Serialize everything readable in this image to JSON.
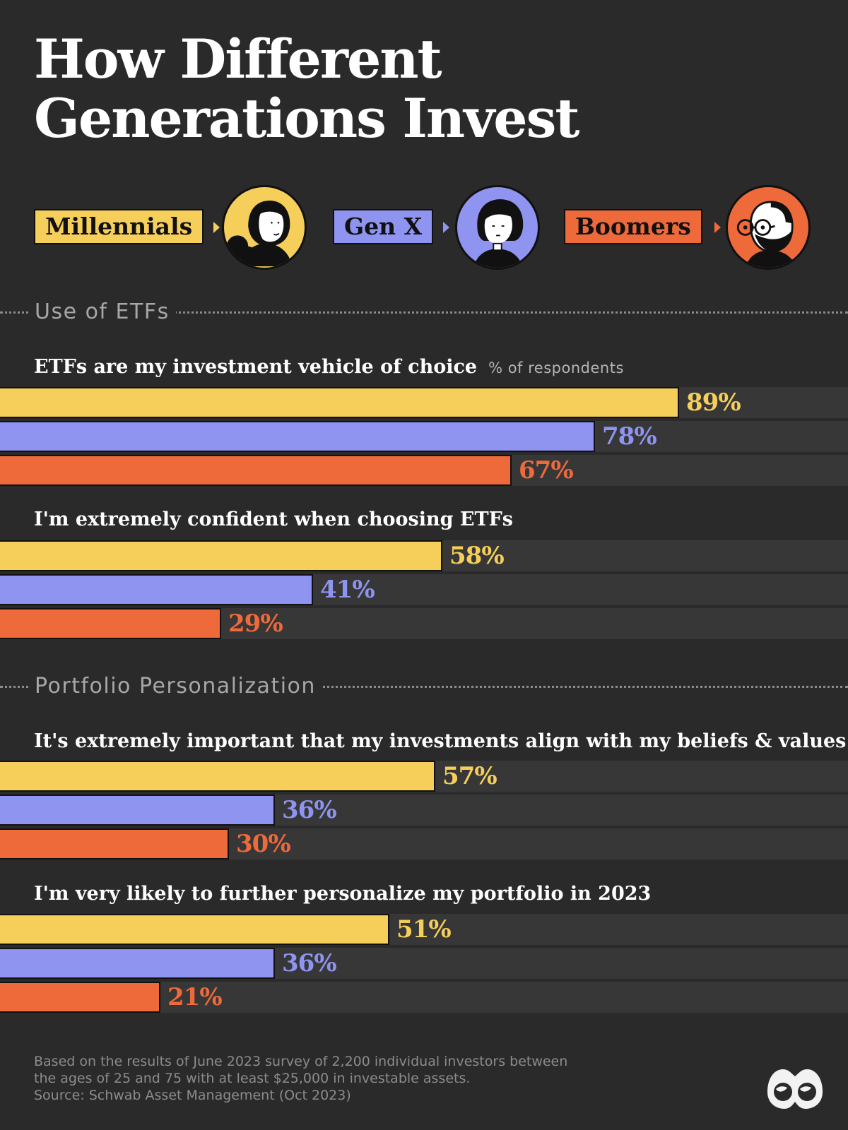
{
  "title": {
    "line1": "How Different",
    "line2": "Generations Invest"
  },
  "legend": [
    {
      "key": "millennials",
      "label": "Millennials",
      "color": "#f6cf5a"
    },
    {
      "key": "genx",
      "label": "Gen X",
      "color": "#8f94f1"
    },
    {
      "key": "boomers",
      "label": "Boomers",
      "color": "#ef6a3a"
    }
  ],
  "sections": [
    {
      "label": "Use of ETFs"
    },
    {
      "label": "Portfolio Personalization"
    }
  ],
  "unit_note": "% of respondents",
  "chart_data": {
    "type": "bar",
    "orientation": "horizontal",
    "xlim": [
      0,
      100
    ],
    "unit": "%",
    "series": [
      {
        "name": "Millennials",
        "color": "#f6cf5a"
      },
      {
        "name": "Gen X",
        "color": "#8f94f1"
      },
      {
        "name": "Boomers",
        "color": "#ef6a3a"
      }
    ],
    "groups": [
      {
        "section": "Use of ETFs",
        "question": "ETFs are my investment vehicle of choice",
        "values": [
          89,
          78,
          67
        ],
        "labels": [
          "89%",
          "78%",
          "67%"
        ]
      },
      {
        "section": "Use of ETFs",
        "question": "I'm extremely confident when choosing ETFs",
        "values": [
          58,
          41,
          29
        ],
        "labels": [
          "58%",
          "41%",
          "29%"
        ]
      },
      {
        "section": "Portfolio Personalization",
        "question": "It's extremely important that my investments align with my beliefs & values",
        "values": [
          57,
          36,
          30
        ],
        "labels": [
          "57%",
          "36%",
          "30%"
        ]
      },
      {
        "section": "Portfolio Personalization",
        "question": "I'm very likely to further personalize my portfolio in 2023",
        "values": [
          51,
          36,
          21
        ],
        "labels": [
          "51%",
          "36%",
          "21%"
        ]
      }
    ]
  },
  "footnote": {
    "line1": "Based on the results of June 2023 survey of 2,200 individual investors between",
    "line2": "the ages of 25 and 75 with at least $25,000 in investable assets.",
    "source": "Source: Schwab Asset Management (Oct 2023)"
  },
  "logo": {
    "icon": "binoculars-logo-icon"
  }
}
